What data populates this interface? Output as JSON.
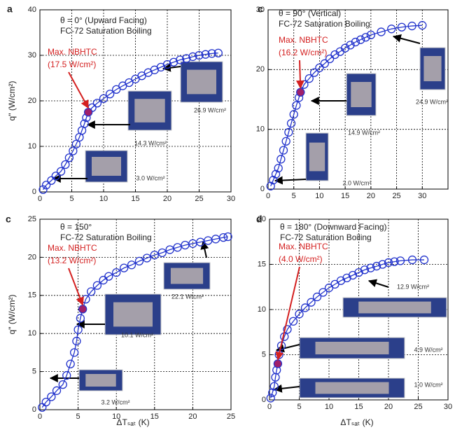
{
  "chart_data": [
    {
      "type": "line",
      "panel": "a",
      "title": "θ = 0° (Upward Facing)",
      "subtitle": "FC-72 Saturation Boiling",
      "y_label": "q\" (W/cm²)",
      "max_label": "Max. NBHTC",
      "max_value_label": "(17.5 W/cm²)",
      "photo_labels": [
        "26.9 W/cm²",
        "14.3 W/cm²",
        "3.0 W/cm²"
      ],
      "xlim": [
        0,
        30
      ],
      "xticks": [
        0,
        5,
        10,
        15,
        20,
        25,
        30
      ],
      "ylim": [
        0,
        40
      ],
      "yticks": [
        0,
        10,
        20,
        30,
        40
      ],
      "grid": true,
      "x": [
        0.5,
        1,
        1.8,
        2.5,
        3.3,
        4,
        4.6,
        5.2,
        5.7,
        6.2,
        6.6,
        7,
        7.3,
        7.6,
        8.2,
        9,
        10,
        11,
        12,
        13,
        14,
        15,
        16,
        17,
        18,
        19,
        20,
        21,
        22,
        23,
        24,
        25,
        26,
        27,
        28
      ],
      "series": [
        {
          "color": "#2233cc",
          "values": [
            0.5,
            1.5,
            2.5,
            3.5,
            4.5,
            6,
            7.5,
            9,
            10.5,
            12,
            13.5,
            15,
            16.3,
            17.5,
            18.5,
            19.5,
            20.5,
            21.5,
            22.5,
            23.3,
            24,
            24.8,
            25.5,
            26.2,
            26.8,
            27.4,
            28,
            28.5,
            29,
            29.3,
            29.7,
            30,
            30.2,
            30.4,
            30.5
          ]
        }
      ],
      "max_point": {
        "x": 7.6,
        "y": 17.5,
        "color": "#a0206a"
      }
    },
    {
      "type": "line",
      "panel": "c",
      "title": "θ = 90° (Vertical)",
      "subtitle": "FC-72 Saturation Boiling",
      "max_label": "Max. NBHTC",
      "max_value_label": "(16.2 W/cm²)",
      "photo_labels": [
        "24.9 W/cm²",
        "14.9 W/cm²",
        "2.0 W/cm²"
      ],
      "xlim": [
        0,
        35
      ],
      "xticks": [
        0,
        5,
        10,
        15,
        20,
        25,
        30
      ],
      "ylim": [
        0,
        30
      ],
      "yticks": [
        0,
        10,
        20,
        30
      ],
      "grid": true,
      "x": [
        0.5,
        1,
        1.5,
        2,
        2.5,
        3,
        3.5,
        4,
        4.5,
        5,
        5.5,
        6,
        6.3,
        7,
        8,
        9,
        10,
        11,
        12,
        13,
        14,
        15,
        16,
        17,
        18,
        19,
        20,
        22,
        24,
        26,
        28,
        30
      ],
      "series": [
        {
          "color": "#2233cc",
          "values": [
            0.5,
            1.5,
            2.5,
            3.5,
            5,
            6.5,
            8,
            9.5,
            11,
            12.5,
            14,
            15.3,
            16.2,
            17.5,
            18.5,
            19.5,
            20.3,
            21,
            21.8,
            22.5,
            23,
            23.6,
            24.1,
            24.6,
            25,
            25.4,
            25.8,
            26.3,
            26.8,
            27.1,
            27.3,
            27.4
          ]
        }
      ],
      "max_point": {
        "x": 6.3,
        "y": 16.2,
        "color": "#a0206a"
      }
    },
    {
      "type": "line",
      "panel": "c",
      "title": "θ = 150°",
      "subtitle": "FC-72 Saturation Boiling",
      "y_label": "q\" (W/cm²)",
      "x_label": "ΔTₛₐₜ (K)",
      "max_label": "Max. NBHTC",
      "max_value_label": "(13.2 W/cm²)",
      "photo_labels": [
        "22.1 W/cm²",
        "10.1 W/cm²",
        "3.2 W/cm²"
      ],
      "xlim": [
        0,
        25
      ],
      "xticks": [
        0,
        5,
        10,
        15,
        20,
        25
      ],
      "ylim": [
        0,
        25
      ],
      "yticks": [
        0,
        5,
        10,
        15,
        20,
        25
      ],
      "grid": true,
      "x": [
        0.3,
        0.8,
        1.5,
        2.2,
        3,
        3.5,
        4,
        4.5,
        4.8,
        5,
        5.3,
        5.6,
        6,
        6.7,
        7.5,
        8.3,
        9,
        10,
        11,
        12,
        13,
        14,
        15,
        16,
        17,
        18,
        19,
        20,
        21,
        22,
        23,
        24,
        24.6
      ],
      "series": [
        {
          "color": "#2233cc",
          "values": [
            0.3,
            1,
            1.7,
            2.5,
            3.3,
            4.5,
            6,
            7.5,
            9,
            10.5,
            12,
            13.2,
            14.5,
            15.5,
            16.3,
            17,
            17.5,
            18,
            18.6,
            19,
            19.5,
            19.9,
            20.3,
            20.6,
            21,
            21.3,
            21.6,
            21.8,
            22,
            22.2,
            22.4,
            22.6,
            22.7
          ]
        }
      ],
      "max_point": {
        "x": 5.6,
        "y": 13.2,
        "color": "#a0206a"
      }
    },
    {
      "type": "line",
      "panel": "d",
      "title": "θ = 180° (Downward Facing)",
      "subtitle": "FC-72 Saturation Boiling",
      "x_label": "ΔTₛₐₜ (K)",
      "max_label": "Max. NBHTC",
      "max_value_label": "(4.0 W/cm²)",
      "photo_labels": [
        "12.9 W/cm²",
        "4.9 W/cm²",
        "1.0 W/cm²"
      ],
      "xlim": [
        0,
        30
      ],
      "xticks": [
        0,
        5,
        10,
        15,
        20,
        25,
        30
      ],
      "ylim": [
        0,
        20
      ],
      "yticks": [
        0,
        5,
        10,
        15,
        20
      ],
      "grid": true,
      "x": [
        0.2,
        0.5,
        0.8,
        1,
        1.2,
        1.4,
        1.6,
        2,
        2.5,
        3,
        4,
        5,
        6,
        7,
        8,
        9,
        10,
        11,
        12,
        13,
        14,
        15,
        16,
        17,
        18,
        19,
        20,
        21,
        22,
        24,
        26
      ],
      "series": [
        {
          "color": "#2233cc",
          "values": [
            0.2,
            0.8,
            1.5,
            2.5,
            3.3,
            4,
            5,
            6,
            7,
            7.8,
            8.7,
            9.5,
            10.2,
            10.8,
            11.4,
            11.9,
            12.4,
            12.8,
            13.2,
            13.5,
            13.8,
            14.1,
            14.4,
            14.6,
            14.8,
            15,
            15.2,
            15.3,
            15.4,
            15.5,
            15.5
          ]
        }
      ],
      "max_point": {
        "x": 1.4,
        "y": 4,
        "color": "#a0206a"
      }
    }
  ]
}
